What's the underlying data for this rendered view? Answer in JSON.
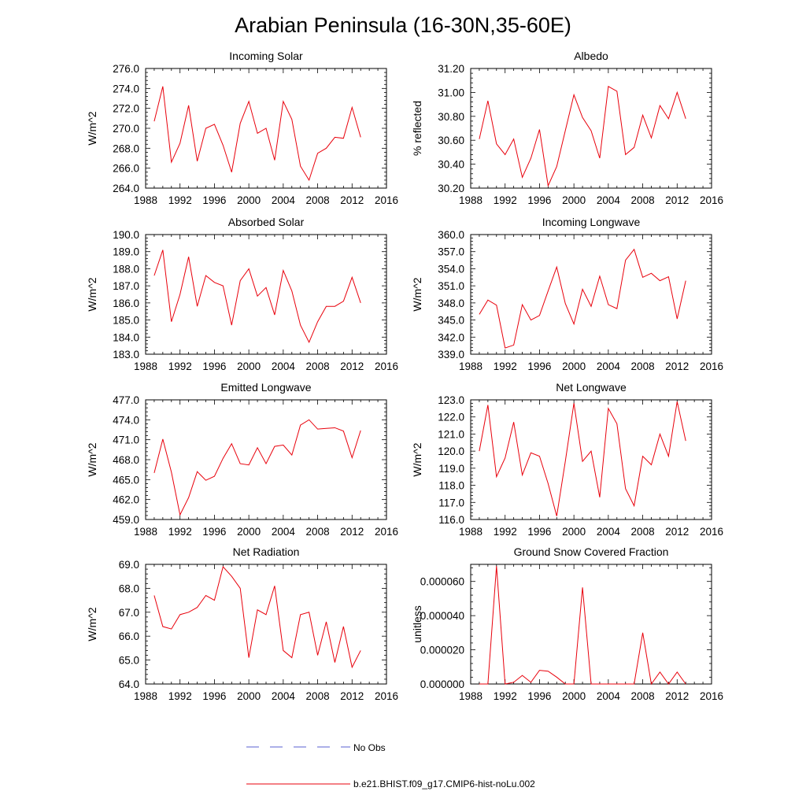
{
  "title": "Arabian Peninsula (16-30N,35-60E)",
  "legend": {
    "placement": "bottom-center",
    "entries": [
      {
        "label": "No Obs",
        "color": "#5a5fd0",
        "style": "dashed"
      },
      {
        "label": "b.e21.BHIST.f09_g17.CMIP6-hist-noLu.002",
        "color": "#e8000b",
        "style": "solid"
      }
    ]
  },
  "chart_data": [
    {
      "type": "line",
      "title": "Incoming Solar",
      "xlabel": "",
      "ylabel": "W/m^2",
      "xlim": [
        1988,
        2016
      ],
      "ylim": [
        264.0,
        276.0
      ],
      "xticks": [
        1988,
        1992,
        1996,
        2000,
        2004,
        2008,
        2012,
        2016
      ],
      "yticks": [
        264.0,
        266.0,
        268.0,
        270.0,
        272.0,
        274.0,
        276.0
      ],
      "ytick_decimals": 1,
      "series": [
        {
          "name": "b.e21.BHIST.f09_g17.CMIP6-hist-noLu.002",
          "color": "#e8000b",
          "x": [
            1989,
            1990,
            1991,
            1992,
            1993,
            1994,
            1995,
            1996,
            1997,
            1998,
            1999,
            2000,
            2001,
            2002,
            2003,
            2004,
            2005,
            2006,
            2007,
            2008,
            2009,
            2010,
            2011,
            2012,
            2013
          ],
          "y": [
            270.7,
            274.2,
            266.6,
            268.5,
            272.3,
            266.7,
            270.0,
            270.4,
            268.3,
            265.6,
            270.5,
            272.7,
            269.5,
            270.0,
            266.8,
            272.7,
            270.9,
            266.2,
            264.8,
            267.5,
            268.0,
            269.1,
            269.0,
            272.1,
            269.1
          ]
        }
      ]
    },
    {
      "type": "line",
      "title": "Albedo",
      "xlabel": "",
      "ylabel": "% reflected",
      "xlim": [
        1988,
        2016
      ],
      "ylim": [
        30.2,
        31.2
      ],
      "xticks": [
        1988,
        1992,
        1996,
        2000,
        2004,
        2008,
        2012,
        2016
      ],
      "yticks": [
        30.2,
        30.4,
        30.6,
        30.8,
        31.0,
        31.2
      ],
      "ytick_decimals": 2,
      "series": [
        {
          "name": "b.e21.BHIST.f09_g17.CMIP6-hist-noLu.002",
          "color": "#e8000b",
          "x": [
            1989,
            1990,
            1991,
            1992,
            1993,
            1994,
            1995,
            1996,
            1997,
            1998,
            1999,
            2000,
            2001,
            2002,
            2003,
            2004,
            2005,
            2006,
            2007,
            2008,
            2009,
            2010,
            2011,
            2012,
            2013
          ],
          "y": [
            30.61,
            30.93,
            30.57,
            30.48,
            30.61,
            30.29,
            30.45,
            30.69,
            30.22,
            30.38,
            30.68,
            30.98,
            30.79,
            30.68,
            30.45,
            31.05,
            31.01,
            30.48,
            30.54,
            30.81,
            30.62,
            30.89,
            30.78,
            31.0,
            30.78
          ]
        }
      ]
    },
    {
      "type": "line",
      "title": "Absorbed Solar",
      "xlabel": "",
      "ylabel": "W/m^2",
      "xlim": [
        1988,
        2016
      ],
      "ylim": [
        183.0,
        190.0
      ],
      "xticks": [
        1988,
        1992,
        1996,
        2000,
        2004,
        2008,
        2012,
        2016
      ],
      "yticks": [
        183.0,
        184.0,
        185.0,
        186.0,
        187.0,
        188.0,
        189.0,
        190.0
      ],
      "ytick_decimals": 1,
      "series": [
        {
          "name": "b.e21.BHIST.f09_g17.CMIP6-hist-noLu.002",
          "color": "#e8000b",
          "x": [
            1989,
            1990,
            1991,
            1992,
            1993,
            1994,
            1995,
            1996,
            1997,
            1998,
            1999,
            2000,
            2001,
            2002,
            2003,
            2004,
            2005,
            2006,
            2007,
            2008,
            2009,
            2010,
            2011,
            2012,
            2013
          ],
          "y": [
            187.6,
            189.1,
            184.9,
            186.5,
            188.7,
            185.8,
            187.6,
            187.2,
            187.0,
            184.7,
            187.3,
            188.0,
            186.4,
            186.9,
            185.3,
            187.9,
            186.7,
            184.7,
            183.7,
            184.9,
            185.8,
            185.8,
            186.1,
            187.5,
            186.0
          ]
        }
      ]
    },
    {
      "type": "line",
      "title": "Incoming Longwave",
      "xlabel": "",
      "ylabel": "W/m^2",
      "xlim": [
        1988,
        2016
      ],
      "ylim": [
        339.0,
        360.0
      ],
      "xticks": [
        1988,
        1992,
        1996,
        2000,
        2004,
        2008,
        2012,
        2016
      ],
      "yticks": [
        339.0,
        342.0,
        345.0,
        348.0,
        351.0,
        354.0,
        357.0,
        360.0
      ],
      "ytick_decimals": 1,
      "series": [
        {
          "name": "b.e21.BHIST.f09_g17.CMIP6-hist-noLu.002",
          "color": "#e8000b",
          "x": [
            1989,
            1990,
            1991,
            1992,
            1993,
            1994,
            1995,
            1996,
            1997,
            1998,
            1999,
            2000,
            2001,
            2002,
            2003,
            2004,
            2005,
            2006,
            2007,
            2008,
            2009,
            2010,
            2011,
            2012,
            2013
          ],
          "y": [
            346.0,
            348.5,
            347.6,
            340.1,
            340.6,
            347.7,
            345.0,
            345.8,
            350.1,
            354.3,
            347.9,
            344.3,
            350.4,
            347.4,
            352.7,
            347.7,
            347.0,
            355.5,
            357.4,
            352.5,
            353.2,
            351.9,
            352.6,
            345.2,
            351.9
          ]
        }
      ]
    },
    {
      "type": "line",
      "title": "Emitted Longwave",
      "xlabel": "",
      "ylabel": "W/m^2",
      "xlim": [
        1988,
        2016
      ],
      "ylim": [
        459.0,
        477.0
      ],
      "xticks": [
        1988,
        1992,
        1996,
        2000,
        2004,
        2008,
        2012,
        2016
      ],
      "yticks": [
        459.0,
        462.0,
        465.0,
        468.0,
        471.0,
        474.0,
        477.0
      ],
      "ytick_decimals": 1,
      "series": [
        {
          "name": "b.e21.BHIST.f09_g17.CMIP6-hist-noLu.002",
          "color": "#e8000b",
          "x": [
            1989,
            1990,
            1991,
            1992,
            1993,
            1994,
            1995,
            1996,
            1997,
            1998,
            1999,
            2000,
            2001,
            2002,
            2003,
            2004,
            2005,
            2006,
            2007,
            2008,
            2009,
            2010,
            2011,
            2012,
            2013
          ],
          "y": [
            466.0,
            471.1,
            466.1,
            459.7,
            462.3,
            466.2,
            464.9,
            465.5,
            468.2,
            470.4,
            467.4,
            467.2,
            469.8,
            467.4,
            470.0,
            470.2,
            468.7,
            473.2,
            474.0,
            472.6,
            472.7,
            472.8,
            472.3,
            468.3,
            472.4
          ]
        }
      ]
    },
    {
      "type": "line",
      "title": "Net Longwave",
      "xlabel": "",
      "ylabel": "W/m^2",
      "xlim": [
        1988,
        2016
      ],
      "ylim": [
        116.0,
        123.0
      ],
      "xticks": [
        1988,
        1992,
        1996,
        2000,
        2004,
        2008,
        2012,
        2016
      ],
      "yticks": [
        116.0,
        117.0,
        118.0,
        119.0,
        120.0,
        121.0,
        122.0,
        123.0
      ],
      "ytick_decimals": 1,
      "series": [
        {
          "name": "b.e21.BHIST.f09_g17.CMIP6-hist-noLu.002",
          "color": "#e8000b",
          "x": [
            1989,
            1990,
            1991,
            1992,
            1993,
            1994,
            1995,
            1996,
            1997,
            1998,
            1999,
            2000,
            2001,
            2002,
            2003,
            2004,
            2005,
            2006,
            2007,
            2008,
            2009,
            2010,
            2011,
            2012,
            2013
          ],
          "y": [
            120.0,
            122.7,
            118.5,
            119.6,
            121.7,
            118.6,
            119.9,
            119.7,
            118.1,
            116.2,
            119.4,
            122.8,
            119.4,
            120.0,
            117.3,
            122.5,
            121.6,
            117.8,
            116.8,
            119.7,
            119.2,
            121.0,
            119.7,
            122.9,
            120.6
          ]
        }
      ]
    },
    {
      "type": "line",
      "title": "Net Radiation",
      "xlabel": "",
      "ylabel": "W/m^2",
      "xlim": [
        1988,
        2016
      ],
      "ylim": [
        64.0,
        69.0
      ],
      "xticks": [
        1988,
        1992,
        1996,
        2000,
        2004,
        2008,
        2012,
        2016
      ],
      "yticks": [
        64.0,
        65.0,
        66.0,
        67.0,
        68.0,
        69.0
      ],
      "ytick_decimals": 1,
      "series": [
        {
          "name": "b.e21.BHIST.f09_g17.CMIP6-hist-noLu.002",
          "color": "#e8000b",
          "x": [
            1989,
            1990,
            1991,
            1992,
            1993,
            1994,
            1995,
            1996,
            1997,
            1998,
            1999,
            2000,
            2001,
            2002,
            2003,
            2004,
            2005,
            2006,
            2007,
            2008,
            2009,
            2010,
            2011,
            2012,
            2013
          ],
          "y": [
            67.7,
            66.4,
            66.3,
            66.9,
            67.0,
            67.2,
            67.7,
            67.5,
            68.9,
            68.5,
            68.0,
            65.1,
            67.1,
            66.9,
            68.1,
            65.4,
            65.1,
            66.9,
            67.0,
            65.2,
            66.6,
            64.9,
            66.4,
            64.7,
            65.4
          ]
        }
      ]
    },
    {
      "type": "line",
      "title": "Ground Snow Covered Fraction",
      "xlabel": "",
      "ylabel": "unitless",
      "xlim": [
        1988,
        2016
      ],
      "ylim": [
        0.0,
        7e-05
      ],
      "xticks": [
        1988,
        1992,
        1996,
        2000,
        2004,
        2008,
        2012,
        2016
      ],
      "yticks": [
        0.0,
        2e-05,
        4e-05,
        6e-05
      ],
      "ytick_decimals": 6,
      "series": [
        {
          "name": "b.e21.BHIST.f09_g17.CMIP6-hist-noLu.002",
          "color": "#e8000b",
          "x": [
            1989,
            1990,
            1991,
            1992,
            1993,
            1994,
            1995,
            1996,
            1997,
            1998,
            1999,
            2000,
            2001,
            2002,
            2003,
            2004,
            2005,
            2006,
            2007,
            2008,
            2009,
            2010,
            2011,
            2012,
            2013
          ],
          "y": [
            0,
            0,
            6.9e-05,
            0,
            1e-06,
            5e-06,
            1e-06,
            8e-06,
            7.5e-06,
            4e-06,
            0,
            0,
            5.65e-05,
            0,
            0,
            0,
            0,
            0,
            0,
            3e-05,
            0,
            7e-06,
            0,
            7e-06,
            0
          ]
        }
      ]
    }
  ]
}
